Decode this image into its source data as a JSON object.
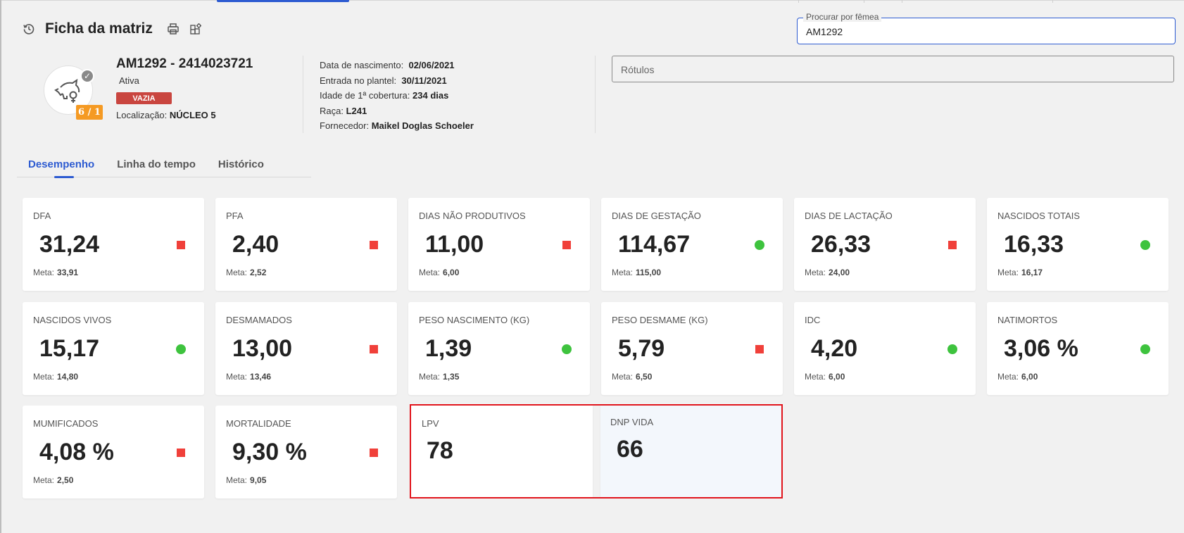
{
  "header": {
    "title": "Ficha da matriz",
    "back_icon": "history-back-icon",
    "print_icon": "printer-icon",
    "config_icon": "layout-settings-icon"
  },
  "search": {
    "label": "Procurar por fêmea",
    "value": "AM1292"
  },
  "sow": {
    "id_line": "AM1292 - 2414023721",
    "status": "Ativa",
    "tag": "VAZIA",
    "location_label": "Localização:",
    "location_value": "NÚCLEO 5",
    "parity_badge": "6 / 1",
    "avatar_icon": "sow-female-icon"
  },
  "details": {
    "birth_label": "Data de nascimento:",
    "birth_value": "02/06/2021",
    "entry_label": "Entrada no plantel:",
    "entry_value": "30/11/2021",
    "first_cover_label": "Idade de 1ª cobertura:",
    "first_cover_value": "234 dias",
    "breed_label": "Raça:",
    "breed_value": "L241",
    "supplier_label": "Fornecedor:",
    "supplier_value": "Maikel Doglas Schoeler"
  },
  "labels_field": {
    "placeholder": "Rótulos"
  },
  "tabs": [
    {
      "label": "Desempenho",
      "active": true
    },
    {
      "label": "Linha do tempo",
      "active": false
    },
    {
      "label": "Histórico",
      "active": false
    }
  ],
  "colors": {
    "accent": "#2d5bd1",
    "bad": "#f0403a",
    "good": "#3ec33e",
    "tag": "#c9453f",
    "parity": "#f59a23",
    "highlight": "#e1141c"
  },
  "meta_label": "Meta:",
  "cards": [
    {
      "title": "DFA",
      "value": "31,24",
      "meta": "33,91",
      "indicator": "bad"
    },
    {
      "title": "PFA",
      "value": "2,40",
      "meta": "2,52",
      "indicator": "bad"
    },
    {
      "title": "DIAS NÃO PRODUTIVOS",
      "value": "11,00",
      "meta": "6,00",
      "indicator": "bad"
    },
    {
      "title": "DIAS DE GESTAÇÃO",
      "value": "114,67",
      "meta": "115,00",
      "indicator": "good"
    },
    {
      "title": "DIAS DE LACTAÇÃO",
      "value": "26,33",
      "meta": "24,00",
      "indicator": "bad"
    },
    {
      "title": "NASCIDOS TOTAIS",
      "value": "16,33",
      "meta": "16,17",
      "indicator": "good"
    },
    {
      "title": "NASCIDOS VIVOS",
      "value": "15,17",
      "meta": "14,80",
      "indicator": "good"
    },
    {
      "title": "DESMAMADOS",
      "value": "13,00",
      "meta": "13,46",
      "indicator": "bad"
    },
    {
      "title": "PESO NASCIMENTO (KG)",
      "value": "1,39",
      "meta": "1,35",
      "indicator": "good"
    },
    {
      "title": "PESO DESMAME (KG)",
      "value": "5,79",
      "meta": "6,50",
      "indicator": "bad"
    },
    {
      "title": "IDC",
      "value": "4,20",
      "meta": "6,00",
      "indicator": "good"
    },
    {
      "title": "NATIMORTOS",
      "value": "3,06 %",
      "meta": "6,00",
      "indicator": "good"
    },
    {
      "title": "MUMIFICADOS",
      "value": "4,08 %",
      "meta": "2,50",
      "indicator": "bad"
    },
    {
      "title": "MORTALIDADE",
      "value": "9,30 %",
      "meta": "9,05",
      "indicator": "bad"
    },
    {
      "title": "LPV",
      "value": "78"
    },
    {
      "title": "DNP VIDA",
      "value": "66"
    }
  ]
}
